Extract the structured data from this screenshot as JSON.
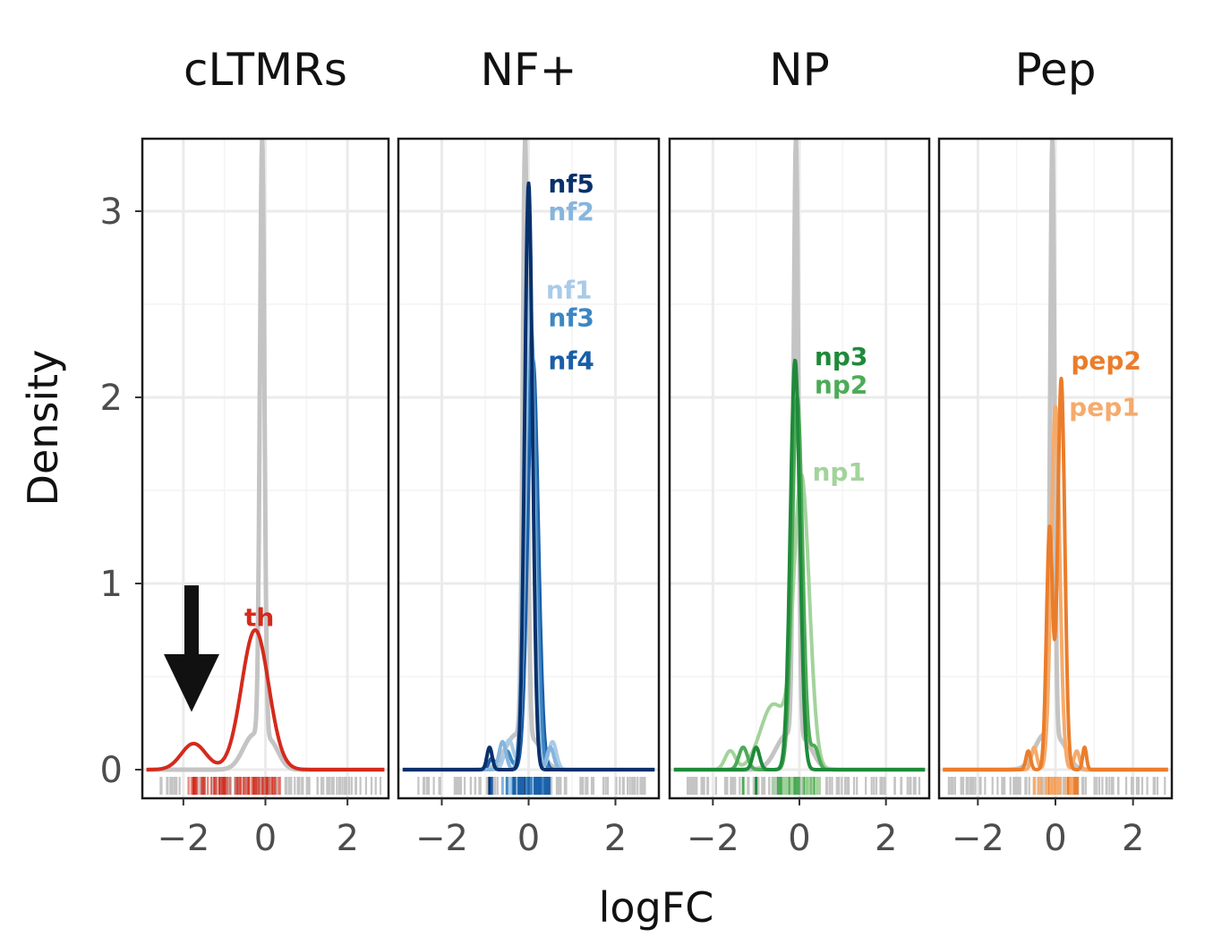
{
  "chart_data": {
    "type": "density",
    "xlabel": "logFC",
    "ylabel": "Density",
    "xlim": [
      -3,
      3
    ],
    "ylim": [
      0,
      3.3
    ],
    "x_ticks": [
      -2,
      0,
      2
    ],
    "y_ticks": [
      0,
      1,
      2,
      3
    ],
    "x_tick_labels": [
      "−2",
      "0",
      "2"
    ],
    "y_tick_labels": [
      "0",
      "1",
      "2",
      "3"
    ],
    "background_color": "#c4c4c4",
    "panels": [
      {
        "title": "cLTMRs",
        "series": [
          {
            "name": "th",
            "color": "#d42a1c",
            "peaks": [
              [
                -0.25,
                0.75,
                0.33
              ],
              [
                -1.75,
                0.14,
                0.3
              ]
            ],
            "label_pos": [
              -0.15,
              0.82
            ]
          }
        ],
        "annotation": "down-arrow"
      },
      {
        "title": "NF+",
        "series": [
          {
            "name": "nf5",
            "color": "#08306b",
            "peaks": [
              [
                0.0,
                3.15,
                0.09
              ],
              [
                -0.9,
                0.12,
                0.06
              ]
            ],
            "label_pos": [
              0.45,
              3.15
            ]
          },
          {
            "name": "nf2",
            "color": "#86b5dd",
            "peaks": [
              [
                0.0,
                3.0,
                0.1
              ],
              [
                -0.6,
                0.15,
                0.08
              ],
              [
                0.5,
                0.12,
                0.08
              ]
            ],
            "label_pos": [
              0.45,
              3.0
            ]
          },
          {
            "name": "nf1",
            "color": "#a9cbe8",
            "peaks": [
              [
                0.02,
                2.6,
                0.1
              ],
              [
                -0.45,
                0.16,
                0.1
              ],
              [
                0.55,
                0.15,
                0.09
              ]
            ],
            "label_pos": [
              0.4,
              2.58
            ]
          },
          {
            "name": "nf3",
            "color": "#3d86c3",
            "peaks": [
              [
                0.05,
                2.4,
                0.12
              ],
              [
                -0.5,
                0.1,
                0.09
              ]
            ],
            "label_pos": [
              0.45,
              2.43
            ]
          },
          {
            "name": "nf4",
            "color": "#1a5ea8",
            "peaks": [
              [
                0.1,
                2.2,
                0.12
              ],
              [
                -0.85,
                0.06,
                0.07
              ]
            ],
            "label_pos": [
              0.45,
              2.2
            ]
          }
        ]
      },
      {
        "title": "NP",
        "series": [
          {
            "name": "np3",
            "color": "#1f8a3a",
            "peaks": [
              [
                -0.1,
                2.2,
                0.11
              ],
              [
                -1.0,
                0.12,
                0.08
              ]
            ],
            "label_pos": [
              0.35,
              2.22
            ]
          },
          {
            "name": "np2",
            "color": "#4dab57",
            "peaks": [
              [
                -0.05,
                2.0,
                0.12
              ],
              [
                -1.3,
                0.12,
                0.1
              ],
              [
                0.35,
                0.12,
                0.09
              ]
            ],
            "label_pos": [
              0.35,
              2.07
            ]
          },
          {
            "name": "np1",
            "color": "#a3d39c",
            "peaks": [
              [
                0.05,
                1.55,
                0.18
              ],
              [
                -0.6,
                0.35,
                0.3
              ],
              [
                -1.6,
                0.1,
                0.12
              ]
            ],
            "label_pos": [
              0.3,
              1.6
            ]
          }
        ]
      },
      {
        "title": "Pep",
        "series": [
          {
            "name": "pep2",
            "color": "#ea7d2b",
            "peaks": [
              [
                0.15,
                2.1,
                0.09
              ],
              [
                -0.15,
                1.3,
                0.08
              ],
              [
                0.75,
                0.12,
                0.05
              ],
              [
                -0.7,
                0.1,
                0.06
              ]
            ],
            "label_pos": [
              0.4,
              2.2
            ]
          },
          {
            "name": "pep1",
            "color": "#f5ab6b",
            "peaks": [
              [
                0.0,
                1.95,
                0.11
              ],
              [
                -0.55,
                0.12,
                0.07
              ],
              [
                0.55,
                0.1,
                0.07
              ]
            ],
            "label_pos": [
              0.35,
              1.95
            ]
          }
        ]
      }
    ]
  }
}
